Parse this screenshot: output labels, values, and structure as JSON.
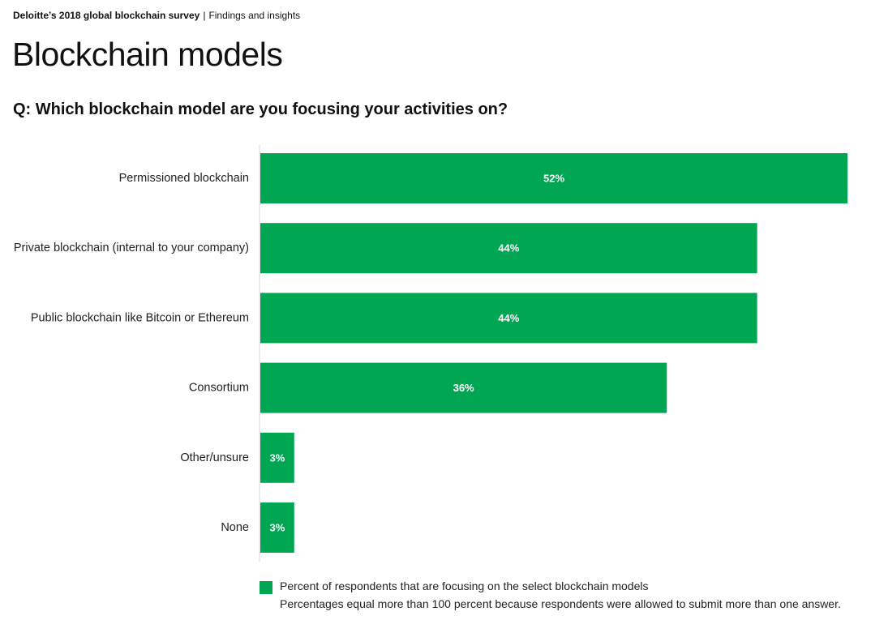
{
  "header": {
    "brand": "Deloitte’s 2018 global blockchain survey",
    "separator": "|",
    "section": "Findings and insights"
  },
  "page_title": "Blockchain models",
  "question": "Q: Which blockchain model are you focusing your activities on?",
  "colors": {
    "bar": "#00a651",
    "axis": "#d9d9d9",
    "bar_label": "#ffffff"
  },
  "legend": {
    "label": "Percent of respondents that are focusing on the select blockchain models",
    "note": "Percentages equal more than 100 percent because respondents were allowed to submit more than one answer."
  },
  "chart_data": {
    "type": "bar",
    "orientation": "horizontal",
    "categories": [
      "Permissioned blockchain",
      "Private blockchain (internal to your company)",
      "Public blockchain like Bitcoin or Ethereum",
      "Consortium",
      "Other/unsure",
      "None"
    ],
    "values": [
      52,
      44,
      44,
      36,
      3,
      3
    ],
    "data_labels": [
      "52%",
      "44%",
      "44%",
      "36%",
      "3%",
      "3%"
    ],
    "xlim": [
      0,
      52
    ],
    "grid": false,
    "legend_position": "bottom"
  }
}
